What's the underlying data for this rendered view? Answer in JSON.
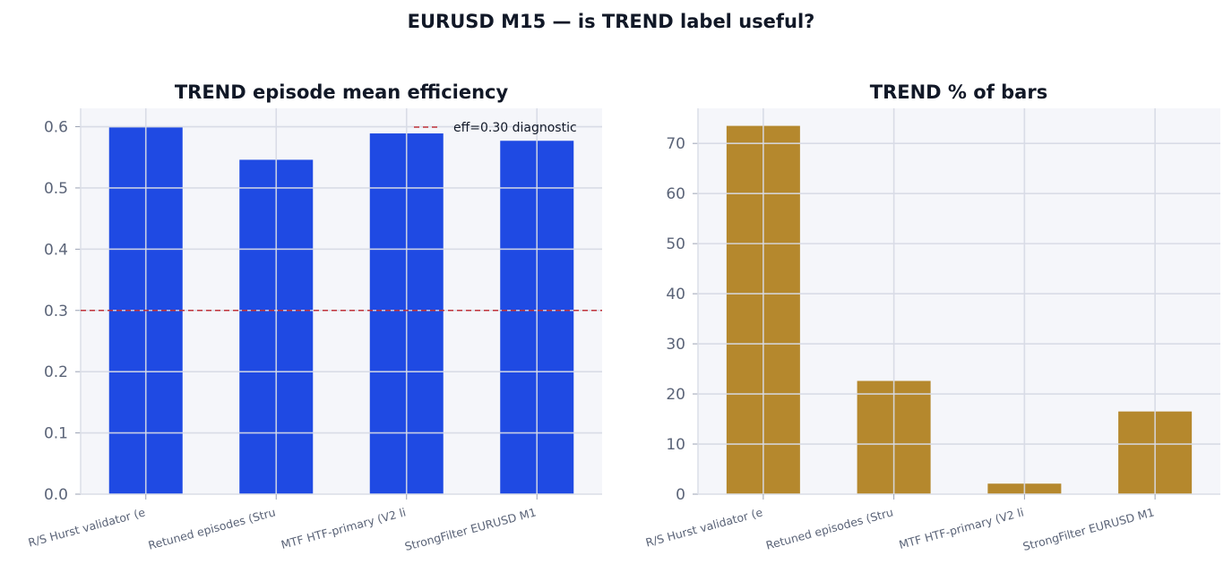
{
  "figure": {
    "suptitle": "EURUSD M15 — is TREND label useful?"
  },
  "colors": {
    "plot_bg": "#f5f6fa",
    "grid": "#e4e6ee",
    "bar_grid": "#d8dbe6",
    "spine": "#dcdfe8",
    "efficiency_bar": "#1f4ae3",
    "pct_bar": "#b5882d",
    "reference_line": "#c0323a"
  },
  "chart_data": [
    {
      "type": "bar",
      "title": "TREND episode mean efficiency",
      "xlabel": "",
      "ylabel": "",
      "categories": [
        "R/S Hurst validator (e",
        "Retuned episodes (Stru",
        "MTF HTF-primary (V2 li",
        "StrongFilter EURUSD M1"
      ],
      "values": [
        0.599,
        0.546,
        0.589,
        0.577
      ],
      "ylim": [
        0,
        0.63
      ],
      "yticks": [
        "0.0",
        "0.1",
        "0.2",
        "0.3",
        "0.4",
        "0.5",
        "0.6"
      ],
      "grid": true,
      "reference_line": {
        "y": 0.3,
        "label": "eff=0.30 diagnostic",
        "style": "dashed"
      },
      "legend": {
        "position": "top-right",
        "entries": [
          "eff=0.30 diagnostic"
        ]
      }
    },
    {
      "type": "bar",
      "title": "TREND % of bars",
      "xlabel": "",
      "ylabel": "",
      "categories": [
        "R/S Hurst validator (e",
        "Retuned episodes (Stru",
        "MTF HTF-primary (V2 li",
        "StrongFilter EURUSD M1"
      ],
      "values": [
        73.5,
        22.6,
        2.1,
        16.5
      ],
      "ylim": [
        0,
        77
      ],
      "yticks": [
        "0",
        "10",
        "20",
        "30",
        "40",
        "50",
        "60",
        "70"
      ],
      "grid": true
    }
  ]
}
